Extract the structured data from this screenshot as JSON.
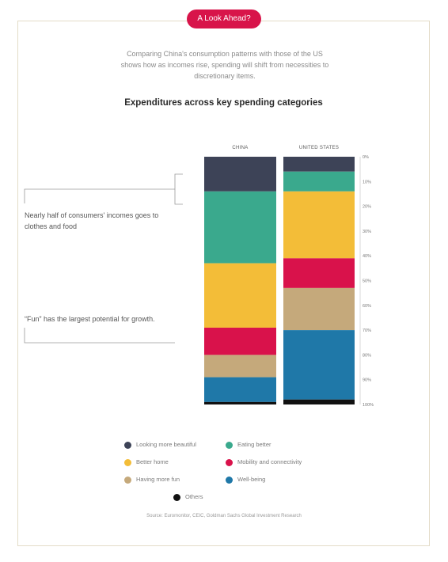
{
  "header": {
    "pill_label": "A Look Ahead?",
    "subtitle": "Comparing China's consumption patterns with those of the US shows how as incomes rise, spending will shift from necessities to discretionary items.",
    "title": "Expenditures across key spending categories"
  },
  "annotations": {
    "note1": "Nearly half of consumers' incomes goes to clothes and food",
    "note2": "“Fun” has the largest potential for growth."
  },
  "source": "Source: Euromonitor, CEIC, Goldman Sachs Global Investment Research",
  "colors": {
    "Looking more beautiful": "#3d4357",
    "Eating better": "#3aa98d",
    "Better home": "#f3bd38",
    "Mobility and connectivity": "#d9124b",
    "Having more fun": "#c5a97b",
    "Well-being": "#1f78a8",
    "Others": "#111111"
  },
  "chart_data": {
    "type": "bar",
    "stacked": true,
    "orientation": "vertical",
    "categories": [
      "CHINA",
      "UNITED STATES"
    ],
    "series": [
      {
        "name": "Looking more beautiful",
        "values": [
          14,
          6
        ]
      },
      {
        "name": "Eating better",
        "values": [
          29,
          8
        ]
      },
      {
        "name": "Better home",
        "values": [
          26,
          27
        ]
      },
      {
        "name": "Mobility and connectivity",
        "values": [
          11,
          12
        ]
      },
      {
        "name": "Having more fun",
        "values": [
          9,
          17
        ]
      },
      {
        "name": "Well-being",
        "values": [
          10,
          28
        ]
      },
      {
        "name": "Others",
        "values": [
          1,
          2
        ]
      }
    ],
    "ylim": [
      0,
      100
    ],
    "yticks": [
      "0%",
      "10%",
      "20%",
      "30%",
      "40%",
      "50%",
      "60%",
      "70%",
      "80%",
      "90%",
      "100%"
    ],
    "legend_order": [
      "Looking more beautiful",
      "Eating better",
      "Better home",
      "Mobility and connectivity",
      "Having more fun",
      "Well-being",
      "Others"
    ],
    "legend_placement": "bottom"
  }
}
